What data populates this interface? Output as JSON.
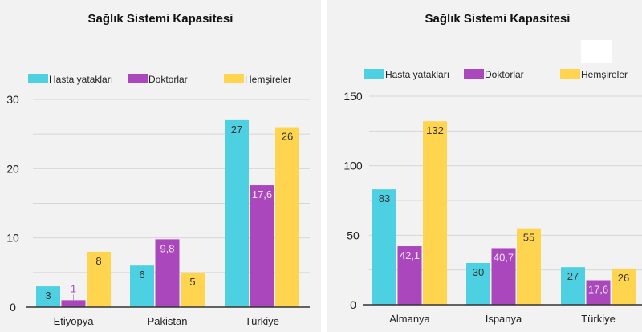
{
  "chart_data": [
    {
      "type": "bar",
      "title": "Sağlık Sistemi Kapasitesi",
      "categories": [
        "Etiyopya",
        "Pakistan",
        "Türkiye"
      ],
      "series": [
        {
          "name": "Hasta yatakları",
          "values": [
            3,
            6,
            27
          ],
          "labels": [
            "3",
            "6",
            "27"
          ],
          "color": "#4dd0e1"
        },
        {
          "name": "Doktorlar",
          "values": [
            1,
            9.8,
            17.6
          ],
          "labels": [
            "1",
            "9,8",
            "17,6"
          ],
          "color": "#ab47bc"
        },
        {
          "name": "Hemşireler",
          "values": [
            8,
            5,
            26
          ],
          "labels": [
            "8",
            "5",
            "26"
          ],
          "color": "#ffd54f"
        }
      ],
      "yticks": [
        "0",
        "10",
        "20",
        "30"
      ],
      "ylim": [
        0,
        30
      ],
      "grid": true,
      "legend": "top"
    },
    {
      "type": "bar",
      "title": "Sağlık Sistemi Kapasitesi",
      "categories": [
        "Almanya",
        "İspanya",
        "Türkiye"
      ],
      "series": [
        {
          "name": "Hasta yatakları",
          "values": [
            83,
            30,
            27
          ],
          "labels": [
            "83",
            "30",
            "27"
          ],
          "color": "#4dd0e1"
        },
        {
          "name": "Doktorlar",
          "values": [
            42.1,
            40.7,
            17.6
          ],
          "labels": [
            "42,1",
            "40,7",
            "17,6"
          ],
          "color": "#ab47bc"
        },
        {
          "name": "Hemşireler",
          "values": [
            132,
            55,
            26
          ],
          "labels": [
            "132",
            "55",
            "26"
          ],
          "color": "#ffd54f"
        }
      ],
      "yticks": [
        "0",
        "50",
        "100",
        "150"
      ],
      "ylim": [
        0,
        150
      ],
      "grid": true,
      "legend": "top"
    }
  ]
}
